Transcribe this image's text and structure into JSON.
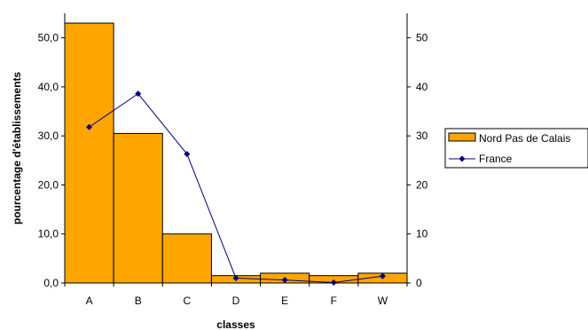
{
  "chart_data": {
    "type": "bar",
    "categories": [
      "A",
      "B",
      "C",
      "D",
      "E",
      "F",
      "W"
    ],
    "series": [
      {
        "name": "Nord Pas de Calais",
        "kind": "bar",
        "axis": "left",
        "values": [
          53.0,
          30.5,
          10.0,
          1.5,
          2.0,
          1.5,
          2.0
        ],
        "color": "#FFA500"
      },
      {
        "name": "France",
        "kind": "line",
        "axis": "right",
        "values": [
          31.8,
          38.6,
          26.3,
          1.0,
          0.6,
          0.1,
          1.4
        ],
        "color": "#000080"
      }
    ],
    "xlabel": "classes",
    "ylabel": "pourcentage d'établissements",
    "y_left": {
      "ylim": [
        0,
        55
      ],
      "ticks": [
        "0,0",
        "10,0",
        "20,0",
        "30,0",
        "40,0",
        "50,0"
      ]
    },
    "y_right": {
      "ylim": [
        0,
        55
      ],
      "ticks": [
        "0",
        "10",
        "20",
        "30",
        "40",
        "50"
      ]
    },
    "grid": false,
    "legend_position": "right"
  }
}
